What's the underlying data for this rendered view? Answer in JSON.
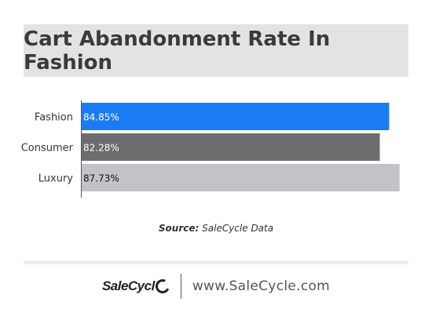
{
  "header": {
    "title": "Cart Abandonment Rate In Fashion"
  },
  "chart_data": {
    "type": "bar",
    "orientation": "horizontal",
    "categories": [
      "Fashion",
      "Consumer",
      "Luxury"
    ],
    "values": [
      84.85,
      82.28,
      87.73
    ],
    "data_labels": [
      "84.85%",
      "82.28%",
      "87.73%"
    ],
    "colors": [
      "#1a7cf5",
      "#6d6d70",
      "#c1c3c6"
    ],
    "label_colors": [
      "#ffffff",
      "#ffffff",
      "#111111"
    ],
    "xlim": [
      0,
      88
    ],
    "grid": false,
    "title": "",
    "xlabel": "",
    "ylabel": ""
  },
  "source": {
    "prefix": "Source:",
    "text": "SaleCycle Data"
  },
  "footer": {
    "logo_text": "SaleCycl",
    "website": "www.SaleCycle.com"
  }
}
